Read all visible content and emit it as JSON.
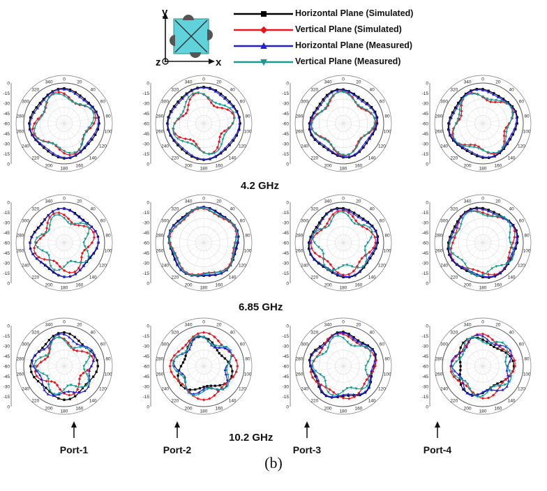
{
  "legend": [
    {
      "name": "Horizontal Plane (Simulated)",
      "color": "#000000",
      "marker": "square"
    },
    {
      "name": "Vertical Plane (Simulated)",
      "color": "#e8141e",
      "marker": "diamond"
    },
    {
      "name": "Horizontal Plane (Measured)",
      "color": "#1f1fd6",
      "marker": "triangle-up"
    },
    {
      "name": "Vertical Plane (Measured)",
      "color": "#159a94",
      "marker": "triangle-down"
    }
  ],
  "axes_labels": {
    "y": "y",
    "z": "z",
    "x": "x"
  },
  "frequencies": [
    "4.2 GHz",
    "6.85 GHz",
    "10.2 GHz"
  ],
  "ports": [
    "Port-1",
    "Port-2",
    "Port-3",
    "Port-4"
  ],
  "caption": "(b)",
  "chart_data": {
    "type": "polar",
    "angle_tick_labels": [
      "0",
      "20",
      "40",
      "60",
      "80",
      "100",
      "120",
      "140",
      "160",
      "180",
      "200",
      "220",
      "240",
      "260",
      "280",
      "300",
      "320",
      "340"
    ],
    "radial_tick_labels": [
      "0",
      "-15",
      "-30",
      "-45",
      "-60",
      "-45",
      "-30",
      "-15",
      "0"
    ],
    "radial_range_dB": [
      -60,
      0
    ],
    "grid": true,
    "legend_placement": "top-center",
    "plots": [
      {
        "row": "4.2 GHz",
        "port": "Port-1",
        "series": [
          {
            "name": "Horizontal Plane (Simulated)",
            "base": -8,
            "amp": 5,
            "n": 4,
            "phase": 0.3
          },
          {
            "name": "Vertical Plane (Simulated)",
            "base": -12,
            "amp": 14,
            "n": 4,
            "phase": 1.1
          },
          {
            "name": "Horizontal Plane (Measured)",
            "base": -9,
            "amp": 6,
            "n": 4,
            "phase": 0.5
          },
          {
            "name": "Vertical Plane (Measured)",
            "base": -14,
            "amp": 12,
            "n": 4,
            "phase": 1.4
          }
        ]
      },
      {
        "row": "4.2 GHz",
        "port": "Port-2",
        "series": [
          {
            "name": "Horizontal Plane (Simulated)",
            "base": -6,
            "amp": 4,
            "n": 4,
            "phase": 0.1
          },
          {
            "name": "Vertical Plane (Simulated)",
            "base": -14,
            "amp": 16,
            "n": 4,
            "phase": 0.9
          },
          {
            "name": "Horizontal Plane (Measured)",
            "base": -7,
            "amp": 5,
            "n": 4,
            "phase": 0.2
          },
          {
            "name": "Vertical Plane (Measured)",
            "base": -13,
            "amp": 12,
            "n": 4,
            "phase": 1.2
          }
        ]
      },
      {
        "row": "4.2 GHz",
        "port": "Port-3",
        "series": [
          {
            "name": "Horizontal Plane (Simulated)",
            "base": -9,
            "amp": 6,
            "n": 4,
            "phase": 0.7
          },
          {
            "name": "Vertical Plane (Simulated)",
            "base": -12,
            "amp": 14,
            "n": 4,
            "phase": 0.2
          },
          {
            "name": "Horizontal Plane (Measured)",
            "base": -10,
            "amp": 7,
            "n": 4,
            "phase": 0.6
          },
          {
            "name": "Vertical Plane (Measured)",
            "base": -13,
            "amp": 12,
            "n": 4,
            "phase": 0.4
          }
        ]
      },
      {
        "row": "4.2 GHz",
        "port": "Port-4",
        "series": [
          {
            "name": "Horizontal Plane (Simulated)",
            "base": -8,
            "amp": 5,
            "n": 4,
            "phase": 1.0
          },
          {
            "name": "Vertical Plane (Simulated)",
            "base": -11,
            "amp": 15,
            "n": 4,
            "phase": 1.9
          },
          {
            "name": "Horizontal Plane (Measured)",
            "base": -9,
            "amp": 6,
            "n": 4,
            "phase": 1.1
          },
          {
            "name": "Vertical Plane (Measured)",
            "base": -12,
            "amp": 11,
            "n": 4,
            "phase": 2.1
          }
        ]
      },
      {
        "row": "6.85 GHz",
        "port": "Port-1",
        "series": [
          {
            "name": "Horizontal Plane (Simulated)",
            "base": -9,
            "amp": 7,
            "n": 4,
            "phase": 0.4
          },
          {
            "name": "Vertical Plane (Simulated)",
            "base": -14,
            "amp": 15,
            "n": 4,
            "phase": 1.2
          },
          {
            "name": "Horizontal Plane (Measured)",
            "base": -9,
            "amp": 8,
            "n": 4,
            "phase": 0.5
          },
          {
            "name": "Vertical Plane (Measured)",
            "base": -17,
            "amp": 14,
            "n": 5,
            "phase": 1.5
          }
        ]
      },
      {
        "row": "6.85 GHz",
        "port": "Port-2",
        "series": [
          {
            "name": "Horizontal Plane (Simulated)",
            "base": -7,
            "amp": 4,
            "n": 5,
            "phase": 0.2
          },
          {
            "name": "Vertical Plane (Simulated)",
            "base": -9,
            "amp": 6,
            "n": 5,
            "phase": 0.6
          },
          {
            "name": "Horizontal Plane (Measured)",
            "base": -7,
            "amp": 5,
            "n": 5,
            "phase": 0.3
          },
          {
            "name": "Vertical Plane (Measured)",
            "base": -8,
            "amp": 6,
            "n": 5,
            "phase": 0.7
          }
        ]
      },
      {
        "row": "6.85 GHz",
        "port": "Port-3",
        "series": [
          {
            "name": "Horizontal Plane (Simulated)",
            "base": -8,
            "amp": 6,
            "n": 4,
            "phase": 0.8
          },
          {
            "name": "Vertical Plane (Simulated)",
            "base": -12,
            "amp": 12,
            "n": 4,
            "phase": 0.3
          },
          {
            "name": "Horizontal Plane (Measured)",
            "base": -9,
            "amp": 7,
            "n": 4,
            "phase": 0.9
          },
          {
            "name": "Vertical Plane (Measured)",
            "base": -14,
            "amp": 13,
            "n": 5,
            "phase": 0.5
          }
        ]
      },
      {
        "row": "6.85 GHz",
        "port": "Port-4",
        "series": [
          {
            "name": "Horizontal Plane (Simulated)",
            "base": -7,
            "amp": 5,
            "n": 4,
            "phase": 1.3
          },
          {
            "name": "Vertical Plane (Simulated)",
            "base": -9,
            "amp": 9,
            "n": 4,
            "phase": 2.0
          },
          {
            "name": "Horizontal Plane (Measured)",
            "base": -8,
            "amp": 6,
            "n": 4,
            "phase": 1.4
          },
          {
            "name": "Vertical Plane (Measured)",
            "base": -10,
            "amp": 10,
            "n": 5,
            "phase": 2.2
          }
        ]
      },
      {
        "row": "10.2 GHz",
        "port": "Port-1",
        "series": [
          {
            "name": "Horizontal Plane (Simulated)",
            "base": -10,
            "amp": 8,
            "n": 4,
            "phase": 0.2
          },
          {
            "name": "Vertical Plane (Simulated)",
            "base": -16,
            "amp": 16,
            "n": 4,
            "phase": 1.0
          },
          {
            "name": "Horizontal Plane (Measured)",
            "base": -12,
            "amp": 10,
            "n": 5,
            "phase": 0.6
          },
          {
            "name": "Vertical Plane (Measured)",
            "base": -16,
            "amp": 15,
            "n": 5,
            "phase": 1.3
          }
        ]
      },
      {
        "row": "10.2 GHz",
        "port": "Port-2",
        "series": [
          {
            "name": "Horizontal Plane (Simulated)",
            "base": -16,
            "amp": 14,
            "n": 3,
            "phase": 0.5
          },
          {
            "name": "Vertical Plane (Simulated)",
            "base": -10,
            "amp": 9,
            "n": 4,
            "phase": 0.0
          },
          {
            "name": "Horizontal Plane (Measured)",
            "base": -15,
            "amp": 13,
            "n": 5,
            "phase": 0.8
          },
          {
            "name": "Vertical Plane (Measured)",
            "base": -14,
            "amp": 12,
            "n": 5,
            "phase": 1.1
          }
        ]
      },
      {
        "row": "10.2 GHz",
        "port": "Port-3",
        "series": [
          {
            "name": "Horizontal Plane (Simulated)",
            "base": -9,
            "amp": 7,
            "n": 5,
            "phase": 0.4
          },
          {
            "name": "Vertical Plane (Simulated)",
            "base": -11,
            "amp": 9,
            "n": 4,
            "phase": 0.9
          },
          {
            "name": "Horizontal Plane (Measured)",
            "base": -10,
            "amp": 8,
            "n": 5,
            "phase": 0.5
          },
          {
            "name": "Vertical Plane (Measured)",
            "base": -14,
            "amp": 13,
            "n": 5,
            "phase": 1.2
          }
        ]
      },
      {
        "row": "10.2 GHz",
        "port": "Port-4",
        "series": [
          {
            "name": "Horizontal Plane (Simulated)",
            "base": -14,
            "amp": 13,
            "n": 3,
            "phase": 1.6
          },
          {
            "name": "Vertical Plane (Simulated)",
            "base": -12,
            "amp": 10,
            "n": 4,
            "phase": 0.4
          },
          {
            "name": "Horizontal Plane (Measured)",
            "base": -13,
            "amp": 11,
            "n": 5,
            "phase": 1.0
          },
          {
            "name": "Vertical Plane (Measured)",
            "base": -14,
            "amp": 12,
            "n": 5,
            "phase": 2.3
          }
        ]
      }
    ]
  }
}
